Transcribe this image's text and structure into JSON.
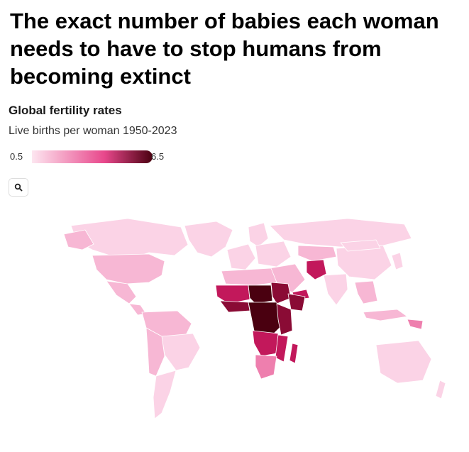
{
  "headline": "The exact number of babies each woman needs to have to stop humans from becoming extinct",
  "chart": {
    "title": "Global fertility rates",
    "subtitle": "Live births per woman 1950-2023"
  },
  "legend": {
    "min_label": "0.5",
    "max_label": "6.5",
    "min_value": 0.5,
    "max_value": 6.5,
    "color_low": "#fde6f0",
    "color_mid": "#e8488c",
    "color_high": "#4a0010"
  },
  "controls": {
    "zoom_icon": "search-icon"
  },
  "map_colors": {
    "very_light": "#fbd3e6",
    "light": "#f7b7d4",
    "medium": "#ee7fae",
    "dark": "#c2185b",
    "darker": "#8a0b35",
    "darkest": "#4a0010",
    "border": "#ffffff"
  }
}
